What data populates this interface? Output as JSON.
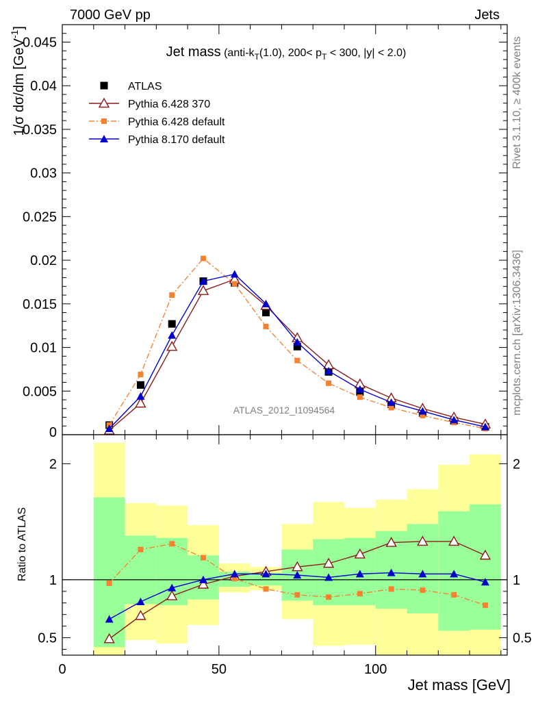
{
  "header": {
    "left": "7000 GeV pp",
    "right": "Jets"
  },
  "side_labels": {
    "rivet": "Rivet 3.1.10, ≥ 400k events",
    "mcplots": "mcplots.cern.ch [arXiv:1306.3436]"
  },
  "watermark": "ATLAS_2012_I1094564",
  "chart_data": [
    {
      "type": "scatter",
      "panel": "main",
      "title_main": "Jet mass",
      "title_sub_a": " (anti-k",
      "title_sub_b": "T",
      "title_sub_c": "(1.0), 200< p",
      "title_sub_d": "T",
      "title_sub_e": " < 300, |y| < 2.0)",
      "ylabel_a": "1/σ dσ/dm [GeV",
      "ylabel_b": "-1",
      "ylabel_c": "]",
      "xlim": [
        0,
        142
      ],
      "ylim": [
        0,
        0.047
      ],
      "yticks": [
        {
          "v": 0,
          "t": "0"
        },
        {
          "v": 0.005,
          "t": "0.005"
        },
        {
          "v": 0.01,
          "t": "0.01"
        },
        {
          "v": 0.015,
          "t": "0.015"
        },
        {
          "v": 0.02,
          "t": "0.02"
        },
        {
          "v": 0.025,
          "t": "0.025"
        },
        {
          "v": 0.03,
          "t": "0.03"
        },
        {
          "v": 0.035,
          "t": "0.035"
        },
        {
          "v": 0.04,
          "t": "0.04"
        },
        {
          "v": 0.045,
          "t": "0.045"
        }
      ],
      "legend_position": "top-left",
      "x": [
        15,
        25,
        35,
        45,
        55,
        65,
        75,
        85,
        95,
        105,
        115,
        125,
        135
      ],
      "series": [
        {
          "name": "ATLAS",
          "color": "#000000",
          "marker": "square",
          "line": "none",
          "values": [
            0.0011,
            0.0057,
            0.0127,
            0.0176,
            0.0174,
            0.014,
            0.0101,
            0.0072,
            0.0049,
            0.0035,
            0.0025,
            0.0016,
            0.0009
          ]
        },
        {
          "name": "Pythia 6.428 370",
          "color": "#8b1a1a",
          "marker": "open-triangle",
          "line": "solid",
          "values": [
            0.0005,
            0.0036,
            0.0101,
            0.0165,
            0.0178,
            0.0148,
            0.0111,
            0.008,
            0.0058,
            0.0042,
            0.003,
            0.002,
            0.0012
          ]
        },
        {
          "name": "Pythia 6.428 default",
          "color": "#f58231",
          "marker": "small-square",
          "line": "dashdot",
          "values": [
            0.0011,
            0.0069,
            0.016,
            0.0202,
            0.0173,
            0.0124,
            0.0085,
            0.0059,
            0.0043,
            0.0031,
            0.0022,
            0.0014,
            0.0007
          ]
        },
        {
          "name": "Pythia 8.170 default",
          "color": "#0000cc",
          "marker": "triangle",
          "line": "solid",
          "values": [
            0.0007,
            0.0044,
            0.0114,
            0.0176,
            0.0184,
            0.015,
            0.0106,
            0.0073,
            0.0052,
            0.0037,
            0.0027,
            0.0017,
            0.0009
          ]
        }
      ]
    },
    {
      "type": "line",
      "panel": "ratio",
      "ylabel": "Ratio to ATLAS",
      "xlabel": "Jet mass [GeV]",
      "xlim": [
        0,
        142
      ],
      "ylim": [
        0.35,
        2.25
      ],
      "xticks": [
        {
          "v": 0,
          "t": "0"
        },
        {
          "v": 50,
          "t": "50"
        },
        {
          "v": 100,
          "t": "100"
        }
      ],
      "yticks": [
        {
          "v": 0.5,
          "t": "0.5"
        },
        {
          "v": 1,
          "t": "1"
        },
        {
          "v": 2,
          "t": "2"
        }
      ],
      "reference": 1,
      "bands": {
        "bins": [
          [
            10,
            20
          ],
          [
            20,
            30
          ],
          [
            30,
            40
          ],
          [
            40,
            50
          ],
          [
            50,
            60
          ],
          [
            60,
            70
          ],
          [
            70,
            80
          ],
          [
            80,
            90
          ],
          [
            90,
            100
          ],
          [
            100,
            110
          ],
          [
            110,
            120
          ],
          [
            120,
            130
          ],
          [
            130,
            140
          ]
        ],
        "outer_color": "#ffff99",
        "inner_color": "#99ff99",
        "outer": [
          [
            0.35,
            2.18
          ],
          [
            0.48,
            1.66
          ],
          [
            0.45,
            1.64
          ],
          [
            0.61,
            1.47
          ],
          [
            0.89,
            1.14
          ],
          [
            0.91,
            1.11
          ],
          [
            0.66,
            1.48
          ],
          [
            0.43,
            1.67
          ],
          [
            0.44,
            1.62
          ],
          [
            0.35,
            1.69
          ],
          [
            0.35,
            1.78
          ],
          [
            0.35,
            1.99
          ],
          [
            0.35,
            2.08
          ]
        ],
        "inner": [
          [
            0.42,
            1.71
          ],
          [
            0.79,
            1.38
          ],
          [
            0.78,
            1.36
          ],
          [
            0.83,
            1.21
          ],
          [
            0.94,
            1.07
          ],
          [
            0.95,
            1.06
          ],
          [
            0.82,
            1.26
          ],
          [
            0.78,
            1.35
          ],
          [
            0.78,
            1.36
          ],
          [
            0.75,
            1.42
          ],
          [
            0.71,
            1.48
          ],
          [
            0.56,
            1.59
          ],
          [
            0.57,
            1.65
          ]
        ]
      },
      "x": [
        15,
        25,
        35,
        45,
        55,
        65,
        75,
        85,
        95,
        105,
        115,
        125,
        135
      ],
      "series": [
        {
          "name": "Pythia 6.428 370",
          "color": "#8b1a1a",
          "marker": "open-triangle",
          "line": "solid",
          "values": [
            0.49,
            0.69,
            0.86,
            0.96,
            1.03,
            1.07,
            1.11,
            1.14,
            1.22,
            1.32,
            1.33,
            1.33,
            1.21
          ]
        },
        {
          "name": "Pythia 6.428 default",
          "color": "#f58231",
          "marker": "small-square",
          "line": "dashdot",
          "values": [
            0.97,
            1.26,
            1.31,
            1.19,
            1.01,
            0.92,
            0.87,
            0.85,
            0.88,
            0.92,
            0.91,
            0.87,
            0.78
          ]
        },
        {
          "name": "Pythia 8.170 default",
          "color": "#0000cc",
          "marker": "triangle",
          "line": "solid",
          "values": [
            0.66,
            0.81,
            0.93,
            1.0,
            1.05,
            1.05,
            1.04,
            1.02,
            1.05,
            1.06,
            1.05,
            1.05,
            0.98
          ]
        }
      ]
    }
  ]
}
